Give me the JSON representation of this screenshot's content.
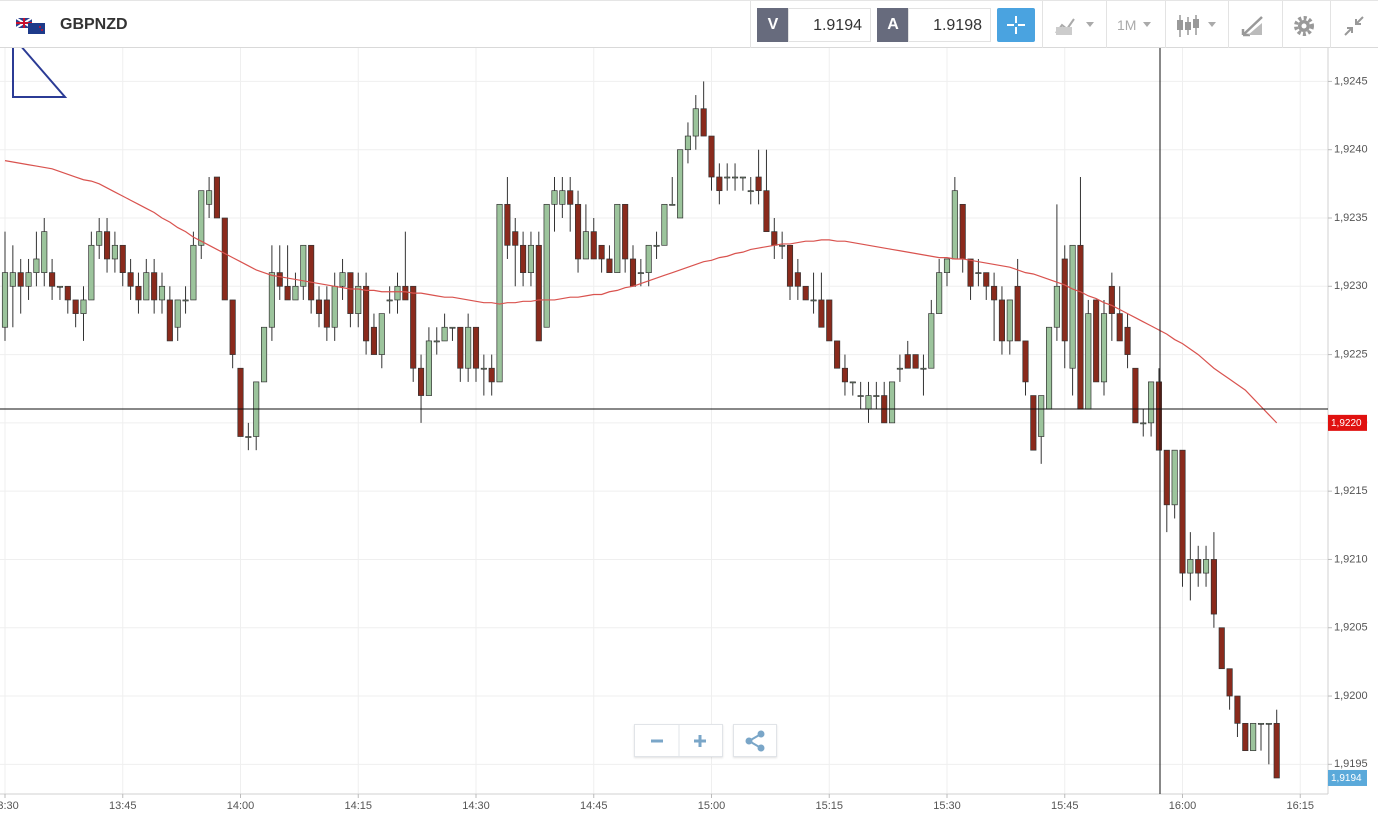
{
  "header": {
    "symbol": "GBPNZD",
    "bid_label": "V",
    "bid": 1.9194,
    "ask_label": "A",
    "ask": 1.9198,
    "timeframe": "1M"
  },
  "chart_data": {
    "type": "candlestick",
    "categories": [
      "13:30",
      null,
      null,
      null,
      null,
      null,
      null,
      null,
      null,
      null,
      null,
      null,
      null,
      null,
      null,
      "13:45",
      null,
      null,
      null,
      null,
      null,
      null,
      null,
      null,
      null,
      null,
      null,
      null,
      null,
      null,
      "14:00",
      null,
      null,
      null,
      null,
      null,
      null,
      null,
      null,
      null,
      null,
      null,
      null,
      null,
      null,
      "14:15",
      null,
      null,
      null,
      null,
      null,
      null,
      null,
      null,
      null,
      null,
      null,
      null,
      null,
      null,
      "14:30",
      null,
      null,
      null,
      null,
      null,
      null,
      null,
      null,
      null,
      null,
      null,
      null,
      null,
      null,
      "14:45",
      null,
      null,
      null,
      null,
      null,
      null,
      null,
      null,
      null,
      null,
      null,
      null,
      null,
      null,
      "15:00",
      null,
      null,
      null,
      null,
      null,
      null,
      null,
      null,
      null,
      null,
      null,
      null,
      null,
      null,
      "15:15",
      null,
      null,
      null,
      null,
      null,
      null,
      null,
      null,
      null,
      null,
      null,
      null,
      null,
      null,
      "15:30",
      null,
      null,
      null,
      null,
      null,
      null,
      null,
      null,
      null,
      null,
      null,
      null,
      null,
      null,
      "15:45",
      null,
      null,
      null,
      null,
      null,
      null,
      null,
      null,
      null,
      null,
      null,
      null,
      null,
      null,
      "16:00",
      null,
      null,
      null,
      null,
      null,
      null,
      null,
      null,
      null,
      null,
      null,
      null,
      null,
      null,
      "16:15"
    ],
    "open": [
      1.9227,
      1.923,
      1.9231,
      1.923,
      1.9231,
      1.9231,
      1.9231,
      1.923,
      1.923,
      1.9229,
      1.9228,
      1.9229,
      1.9233,
      1.9234,
      1.9232,
      1.9233,
      1.9231,
      1.923,
      1.9229,
      1.9231,
      1.9229,
      1.9229,
      1.9227,
      1.9229,
      1.9229,
      1.9233,
      1.9236,
      1.9238,
      1.9235,
      1.9229,
      1.9224,
      1.9219,
      1.9219,
      1.9223,
      1.9227,
      1.9231,
      1.923,
      1.9229,
      1.923,
      1.9233,
      1.9229,
      1.9229,
      1.9227,
      1.923,
      1.9231,
      1.9228,
      1.923,
      1.9227,
      1.9225,
      1.9229,
      1.9229,
      1.923,
      1.923,
      1.9224,
      1.9222,
      1.9226,
      1.9226,
      1.9227,
      1.9227,
      1.9224,
      1.9227,
      1.9224,
      1.9224,
      1.9223,
      1.9236,
      1.9234,
      1.9233,
      1.9231,
      1.9233,
      1.9227,
      1.9236,
      1.9236,
      1.9237,
      1.9236,
      1.9232,
      1.9234,
      1.9233,
      1.9232,
      1.9231,
      1.9236,
      1.9232,
      1.9231,
      1.9231,
      1.9233,
      1.9233,
      1.9236,
      1.9235,
      1.924,
      1.9241,
      1.9243,
      1.9241,
      1.9238,
      1.9238,
      1.9238,
      1.9238,
      1.9237,
      1.9238,
      1.9237,
      1.9234,
      1.9233,
      1.9233,
      1.9231,
      1.923,
      1.9229,
      1.9229,
      1.9229,
      1.9226,
      1.9224,
      1.9223,
      1.9222,
      1.9221,
      1.9222,
      1.9222,
      1.922,
      1.9224,
      1.9225,
      1.9225,
      1.9224,
      1.9224,
      1.9228,
      1.9231,
      1.9232,
      1.9236,
      1.9232,
      1.9231,
      1.9231,
      1.923,
      1.9229,
      1.9226,
      1.923,
      1.9226,
      1.9222,
      1.9219,
      1.9221,
      1.9227,
      1.9232,
      1.9224,
      1.9233,
      1.9221,
      1.9229,
      1.9223,
      1.923,
      1.9228,
      1.9227,
      1.9224,
      1.922,
      1.922,
      1.9223,
      1.9218,
      1.9214,
      1.9218,
      1.9209,
      1.921,
      1.9209,
      1.921,
      1.9205,
      1.9202,
      1.92,
      1.9198,
      1.9196,
      1.9198,
      1.9198,
      1.9198,
      null,
      null,
      null
    ],
    "high": [
      1.9234,
      1.9233,
      1.9232,
      1.9232,
      1.9234,
      1.9235,
      1.9232,
      1.923,
      1.923,
      1.9229,
      1.923,
      1.9234,
      1.9235,
      1.9235,
      1.9234,
      1.9233,
      1.9232,
      1.9231,
      1.9232,
      1.9232,
      1.9231,
      1.923,
      1.9229,
      1.923,
      1.9234,
      1.9237,
      1.9238,
      1.9238,
      1.9235,
      1.9229,
      1.9224,
      1.922,
      1.9223,
      1.9227,
      1.9233,
      1.9233,
      1.9233,
      1.9231,
      1.9233,
      1.9233,
      1.923,
      1.923,
      1.9231,
      1.9232,
      1.9231,
      1.9231,
      1.9231,
      1.9228,
      1.9228,
      1.923,
      1.9231,
      1.9234,
      1.923,
      1.9225,
      1.9227,
      1.9227,
      1.9228,
      1.9227,
      1.9227,
      1.9228,
      1.9227,
      1.9225,
      1.9225,
      1.9236,
      1.9238,
      1.9235,
      1.9234,
      1.9234,
      1.9234,
      1.9236,
      1.9238,
      1.9238,
      1.9238,
      1.9237,
      1.9236,
      1.9235,
      1.9233,
      1.9233,
      1.9236,
      1.9236,
      1.9233,
      1.9232,
      1.9233,
      1.9234,
      1.9236,
      1.9238,
      1.924,
      1.9242,
      1.9244,
      1.9245,
      1.9241,
      1.9239,
      1.9239,
      1.9239,
      1.9238,
      1.9238,
      1.924,
      1.924,
      1.9235,
      1.9234,
      1.9233,
      1.9232,
      1.923,
      1.9231,
      1.9231,
      1.9229,
      1.9226,
      1.9225,
      1.9223,
      1.9223,
      1.9223,
      1.9223,
      1.9223,
      1.9223,
      1.9225,
      1.9226,
      1.9225,
      1.9225,
      1.9229,
      1.9232,
      1.9232,
      1.9238,
      1.9236,
      1.9232,
      1.9232,
      1.9231,
      1.9231,
      1.923,
      1.9229,
      1.9232,
      1.9226,
      1.9222,
      1.9222,
      1.9227,
      1.9236,
      1.9233,
      1.9233,
      1.9238,
      1.9229,
      1.9229,
      1.9229,
      1.9231,
      1.923,
      1.9228,
      1.9224,
      1.9221,
      1.9223,
      1.9224,
      1.9218,
      1.9218,
      1.9218,
      1.9212,
      1.9211,
      1.9211,
      1.9212,
      1.9205,
      1.9202,
      1.92,
      1.9198,
      1.9198,
      1.9198,
      1.9198,
      1.9199,
      null,
      null,
      null
    ],
    "low": [
      1.9226,
      1.9227,
      1.9228,
      1.9229,
      1.923,
      1.923,
      1.9229,
      1.9229,
      1.9228,
      1.9227,
      1.9226,
      1.9229,
      1.9232,
      1.9231,
      1.9231,
      1.923,
      1.9229,
      1.9228,
      1.9229,
      1.9228,
      1.9228,
      1.9226,
      1.9226,
      1.9228,
      1.9229,
      1.9232,
      1.9235,
      1.9235,
      1.9229,
      1.9224,
      1.9219,
      1.9218,
      1.9218,
      1.9223,
      1.9226,
      1.9229,
      1.9229,
      1.9229,
      1.9229,
      1.9228,
      1.9227,
      1.9226,
      1.9226,
      1.9229,
      1.9227,
      1.9227,
      1.9225,
      1.9225,
      1.9224,
      1.9228,
      1.9228,
      1.9229,
      1.9223,
      1.922,
      1.9222,
      1.9225,
      1.9226,
      1.9226,
      1.9223,
      1.9223,
      1.9223,
      1.9222,
      1.9222,
      1.9223,
      1.9232,
      1.923,
      1.923,
      1.923,
      1.9226,
      1.9227,
      1.9234,
      1.9235,
      1.9234,
      1.9231,
      1.9232,
      1.9232,
      1.9231,
      1.9231,
      1.9231,
      1.9231,
      1.923,
      1.923,
      1.923,
      1.9232,
      1.9233,
      1.9236,
      1.9235,
      1.9239,
      1.924,
      1.9241,
      1.9237,
      1.9236,
      1.9237,
      1.9237,
      1.9237,
      1.9236,
      1.9236,
      1.9234,
      1.9232,
      1.9232,
      1.9229,
      1.9229,
      1.9229,
      1.9228,
      1.9227,
      1.9226,
      1.9224,
      1.9222,
      1.9222,
      1.9221,
      1.922,
      1.9221,
      1.922,
      1.922,
      1.9223,
      1.9224,
      1.9224,
      1.9222,
      1.9224,
      1.9228,
      1.923,
      1.9232,
      1.9231,
      1.9229,
      1.923,
      1.9229,
      1.9226,
      1.9225,
      1.9225,
      1.9226,
      1.9222,
      1.9218,
      1.9217,
      1.9221,
      1.9226,
      1.9224,
      1.9222,
      1.9221,
      1.9221,
      1.9223,
      1.9222,
      1.9226,
      1.9226,
      1.9224,
      1.922,
      1.9219,
      1.9219,
      1.9218,
      1.9212,
      1.9213,
      1.9208,
      1.9207,
      1.9208,
      1.9208,
      1.9205,
      1.9202,
      1.9199,
      1.9197,
      1.9196,
      1.9196,
      1.9196,
      1.9195,
      1.9194,
      null,
      null,
      null
    ],
    "close": [
      1.9231,
      1.9231,
      1.923,
      1.9231,
      1.9232,
      1.9234,
      1.923,
      1.923,
      1.9229,
      1.9228,
      1.9229,
      1.9233,
      1.9234,
      1.9232,
      1.9233,
      1.9231,
      1.923,
      1.9229,
      1.9231,
      1.9229,
      1.923,
      1.9226,
      1.9229,
      1.9229,
      1.9233,
      1.9237,
      1.9237,
      1.9235,
      1.9229,
      1.9225,
      1.9219,
      1.9219,
      1.9223,
      1.9227,
      1.9231,
      1.923,
      1.9229,
      1.923,
      1.9233,
      1.9229,
      1.9228,
      1.9227,
      1.923,
      1.9231,
      1.9228,
      1.923,
      1.9226,
      1.9225,
      1.9228,
      1.9229,
      1.923,
      1.9229,
      1.9224,
      1.9222,
      1.9226,
      1.9226,
      1.9227,
      1.9227,
      1.9224,
      1.9227,
      1.9224,
      1.9224,
      1.9223,
      1.9236,
      1.9233,
      1.9233,
      1.9231,
      1.9233,
      1.9226,
      1.9236,
      1.9237,
      1.9237,
      1.9236,
      1.9232,
      1.9234,
      1.9232,
      1.9232,
      1.9231,
      1.9236,
      1.9232,
      1.923,
      1.9231,
      1.9233,
      1.9233,
      1.9236,
      1.9236,
      1.924,
      1.9241,
      1.9243,
      1.9241,
      1.9238,
      1.9237,
      1.9238,
      1.9238,
      1.9238,
      1.9237,
      1.9237,
      1.9234,
      1.9233,
      1.9233,
      1.923,
      1.923,
      1.9229,
      1.9229,
      1.9227,
      1.9226,
      1.9224,
      1.9223,
      1.9223,
      1.9222,
      1.9222,
      1.9222,
      1.922,
      1.9223,
      1.9224,
      1.9224,
      1.9224,
      1.9224,
      1.9228,
      1.9231,
      1.9232,
      1.9237,
      1.9232,
      1.923,
      1.9231,
      1.923,
      1.9229,
      1.9226,
      1.9229,
      1.9226,
      1.9223,
      1.9218,
      1.9222,
      1.9227,
      1.923,
      1.9226,
      1.9233,
      1.9221,
      1.9228,
      1.9223,
      1.9228,
      1.9228,
      1.9226,
      1.9225,
      1.922,
      1.922,
      1.9223,
      1.9218,
      1.9214,
      1.9218,
      1.9209,
      1.921,
      1.9209,
      1.921,
      1.9206,
      1.9202,
      1.92,
      1.9198,
      1.9196,
      1.9198,
      1.9198,
      1.9198,
      1.9194,
      null,
      null,
      null
    ],
    "up_color": "#9cc49c",
    "down_color": "#8a2a1c",
    "moving_average": {
      "color": "#d9534f",
      "values": [
        1.92392,
        1.92391,
        1.9239,
        1.92389,
        1.92388,
        1.92387,
        1.92386,
        1.92384,
        1.92382,
        1.9238,
        1.92378,
        1.92377,
        1.92375,
        1.92372,
        1.92369,
        1.92366,
        1.92363,
        1.9236,
        1.92357,
        1.92354,
        1.9235,
        1.92347,
        1.92343,
        1.9234,
        1.92336,
        1.92333,
        1.9233,
        1.92327,
        1.92324,
        1.92321,
        1.92318,
        1.92315,
        1.92312,
        1.9231,
        1.92308,
        1.92307,
        1.92306,
        1.92305,
        1.92304,
        1.92303,
        1.92302,
        1.92301,
        1.923,
        1.92299,
        1.92298,
        1.92298,
        1.92297,
        1.92297,
        1.92296,
        1.92296,
        1.92296,
        1.92296,
        1.92295,
        1.92295,
        1.92294,
        1.92293,
        1.92292,
        1.92292,
        1.92291,
        1.9229,
        1.92289,
        1.92288,
        1.92288,
        1.92287,
        1.92288,
        1.92288,
        1.92289,
        1.92289,
        1.9229,
        1.9229,
        1.9229,
        1.92291,
        1.92292,
        1.92292,
        1.92293,
        1.92294,
        1.92294,
        1.92296,
        1.92297,
        1.92299,
        1.923,
        1.92302,
        1.92304,
        1.92306,
        1.92308,
        1.9231,
        1.92312,
        1.92314,
        1.92316,
        1.92318,
        1.92319,
        1.92321,
        1.92322,
        1.92324,
        1.92325,
        1.92327,
        1.92328,
        1.92329,
        1.9233,
        1.92331,
        1.92331,
        1.92332,
        1.92333,
        1.92333,
        1.92334,
        1.92334,
        1.92333,
        1.92333,
        1.92332,
        1.92331,
        1.9233,
        1.92329,
        1.92328,
        1.92327,
        1.92326,
        1.92325,
        1.92324,
        1.92323,
        1.92322,
        1.92321,
        1.92321,
        1.9232,
        1.9232,
        1.92319,
        1.92318,
        1.92317,
        1.92316,
        1.92315,
        1.92314,
        1.92312,
        1.9231,
        1.92309,
        1.92307,
        1.92305,
        1.92303,
        1.92301,
        1.92298,
        1.92296,
        1.92293,
        1.92291,
        1.92288,
        1.92286,
        1.92283,
        1.9228,
        1.92277,
        1.92274,
        1.92271,
        1.92268,
        1.92265,
        1.92261,
        1.92258,
        1.92254,
        1.9225,
        1.92245,
        1.9224,
        1.92236,
        1.92232,
        1.92228,
        1.92224,
        1.92218,
        1.92212,
        1.92206,
        1.922,
        null,
        null,
        null
      ]
    },
    "ylim": [
      1.91929,
      1.92473
    ],
    "yticks": [
      {
        "value": 1.9195,
        "label": "1,9195"
      },
      {
        "value": 1.92,
        "label": "1,9200"
      },
      {
        "value": 1.9205,
        "label": "1,9205"
      },
      {
        "value": 1.921,
        "label": "1,9210"
      },
      {
        "value": 1.9215,
        "label": "1,9215"
      },
      {
        "value": 1.922,
        "label": "1,9220"
      },
      {
        "value": 1.9225,
        "label": "1,9225"
      },
      {
        "value": 1.923,
        "label": "1,9230"
      },
      {
        "value": 1.9235,
        "label": "1,9235"
      },
      {
        "value": 1.924,
        "label": "1,9240"
      },
      {
        "value": 1.9245,
        "label": "1,9245"
      }
    ],
    "grid": true,
    "price_markers": [
      {
        "value": 1.922,
        "label": "1,9220",
        "color": "#e0110f"
      },
      {
        "value": 1.9194,
        "label": "1,9194",
        "color": "#5aa9da"
      }
    ]
  }
}
